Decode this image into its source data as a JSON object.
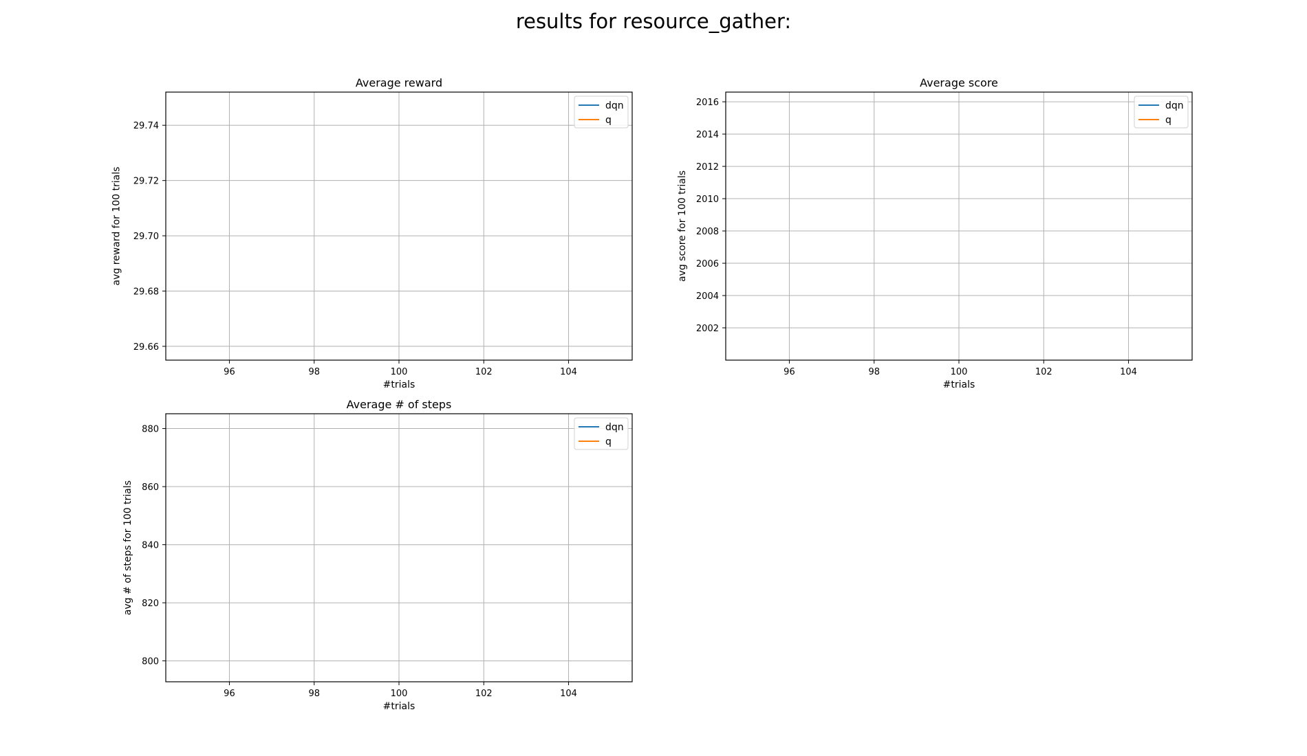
{
  "figure": {
    "title": "results for resource_gather:"
  },
  "chart_data": [
    {
      "type": "line",
      "title": "Average reward",
      "xlabel": "#trials",
      "ylabel": "avg reward for 100 trials",
      "xlim": [
        94.5,
        105.5
      ],
      "ylim": [
        29.655,
        29.752
      ],
      "xticks": [
        96,
        98,
        100,
        102,
        104
      ],
      "xtick_labels": [
        "96",
        "98",
        "100",
        "102",
        "104"
      ],
      "yticks": [
        29.66,
        29.68,
        29.7,
        29.72,
        29.74
      ],
      "ytick_labels": [
        "29.66",
        "29.68",
        "29.70",
        "29.72",
        "29.74"
      ],
      "grid": true,
      "legend": "top-right",
      "series": [
        {
          "name": "dqn",
          "color": "#1f77b4",
          "x": [],
          "y": []
        },
        {
          "name": "q",
          "color": "#ff7f0e",
          "x": [],
          "y": []
        }
      ]
    },
    {
      "type": "line",
      "title": "Average score",
      "xlabel": "#trials",
      "ylabel": "avg score for 100 trials",
      "xlim": [
        94.5,
        105.5
      ],
      "ylim": [
        2000.0,
        2016.6
      ],
      "xticks": [
        96,
        98,
        100,
        102,
        104
      ],
      "xtick_labels": [
        "96",
        "98",
        "100",
        "102",
        "104"
      ],
      "yticks": [
        2002,
        2004,
        2006,
        2008,
        2010,
        2012,
        2014,
        2016
      ],
      "ytick_labels": [
        "2002",
        "2004",
        "2006",
        "2008",
        "2010",
        "2012",
        "2014",
        "2016"
      ],
      "grid": true,
      "legend": "top-right",
      "series": [
        {
          "name": "dqn",
          "color": "#1f77b4",
          "x": [],
          "y": []
        },
        {
          "name": "q",
          "color": "#ff7f0e",
          "x": [],
          "y": []
        }
      ]
    },
    {
      "type": "line",
      "title": "Average # of steps",
      "xlabel": "#trials",
      "ylabel": "avg # of steps for 100 trials",
      "xlim": [
        94.5,
        105.5
      ],
      "ylim": [
        792.8,
        885.1
      ],
      "xticks": [
        96,
        98,
        100,
        102,
        104
      ],
      "xtick_labels": [
        "96",
        "98",
        "100",
        "102",
        "104"
      ],
      "yticks": [
        800,
        820,
        840,
        860,
        880
      ],
      "ytick_labels": [
        "800",
        "820",
        "840",
        "860",
        "880"
      ],
      "grid": true,
      "legend": "top-right",
      "series": [
        {
          "name": "dqn",
          "color": "#1f77b4",
          "x": [],
          "y": []
        },
        {
          "name": "q",
          "color": "#ff7f0e",
          "x": [],
          "y": []
        }
      ]
    }
  ]
}
